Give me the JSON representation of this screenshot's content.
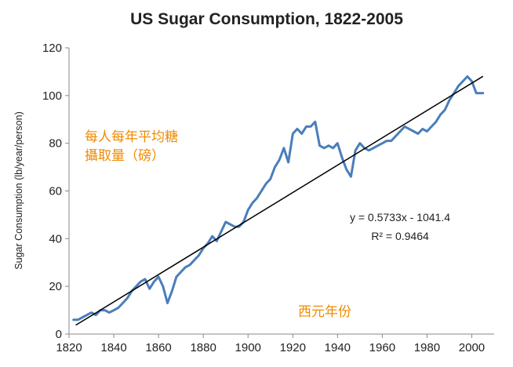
{
  "chart_data": {
    "type": "line",
    "title": "US Sugar Consumption, 1822-2005",
    "ylabel": "Sugar Consumption (lb/year/person)",
    "xlabel": "",
    "xlim": [
      1820,
      2010
    ],
    "ylim": [
      0,
      120
    ],
    "x_ticks": [
      1820,
      1840,
      1860,
      1880,
      1900,
      1920,
      1940,
      1960,
      1980,
      2000
    ],
    "y_ticks": [
      0,
      20,
      40,
      60,
      80,
      100,
      120
    ],
    "grid": false,
    "legend": "none",
    "series": [
      {
        "color": "#4a7ebb",
        "points": [
          [
            1822,
            6
          ],
          [
            1824,
            6
          ],
          [
            1826,
            7
          ],
          [
            1828,
            8
          ],
          [
            1830,
            9
          ],
          [
            1832,
            8
          ],
          [
            1834,
            10
          ],
          [
            1836,
            10
          ],
          [
            1838,
            9
          ],
          [
            1840,
            10
          ],
          [
            1842,
            11
          ],
          [
            1844,
            13
          ],
          [
            1846,
            15
          ],
          [
            1848,
            18
          ],
          [
            1850,
            20
          ],
          [
            1852,
            22
          ],
          [
            1854,
            23
          ],
          [
            1856,
            19
          ],
          [
            1858,
            22
          ],
          [
            1860,
            24
          ],
          [
            1862,
            20
          ],
          [
            1864,
            13
          ],
          [
            1866,
            18
          ],
          [
            1868,
            24
          ],
          [
            1870,
            26
          ],
          [
            1872,
            28
          ],
          [
            1874,
            29
          ],
          [
            1876,
            31
          ],
          [
            1878,
            33
          ],
          [
            1880,
            36
          ],
          [
            1882,
            38
          ],
          [
            1884,
            41
          ],
          [
            1886,
            39
          ],
          [
            1888,
            43
          ],
          [
            1890,
            47
          ],
          [
            1892,
            46
          ],
          [
            1894,
            45
          ],
          [
            1896,
            45
          ],
          [
            1898,
            47
          ],
          [
            1900,
            52
          ],
          [
            1902,
            55
          ],
          [
            1904,
            57
          ],
          [
            1906,
            60
          ],
          [
            1908,
            63
          ],
          [
            1910,
            65
          ],
          [
            1912,
            70
          ],
          [
            1914,
            73
          ],
          [
            1916,
            78
          ],
          [
            1918,
            72
          ],
          [
            1920,
            84
          ],
          [
            1922,
            86
          ],
          [
            1924,
            84
          ],
          [
            1926,
            87
          ],
          [
            1928,
            87
          ],
          [
            1930,
            89
          ],
          [
            1932,
            79
          ],
          [
            1934,
            78
          ],
          [
            1936,
            79
          ],
          [
            1938,
            78
          ],
          [
            1940,
            80
          ],
          [
            1942,
            74
          ],
          [
            1944,
            69
          ],
          [
            1946,
            66
          ],
          [
            1948,
            77
          ],
          [
            1950,
            80
          ],
          [
            1952,
            78
          ],
          [
            1954,
            77
          ],
          [
            1956,
            78
          ],
          [
            1958,
            79
          ],
          [
            1960,
            80
          ],
          [
            1962,
            81
          ],
          [
            1964,
            81
          ],
          [
            1966,
            83
          ],
          [
            1968,
            85
          ],
          [
            1970,
            87
          ],
          [
            1972,
            86
          ],
          [
            1974,
            85
          ],
          [
            1976,
            84
          ],
          [
            1978,
            86
          ],
          [
            1980,
            85
          ],
          [
            1982,
            87
          ],
          [
            1984,
            89
          ],
          [
            1986,
            92
          ],
          [
            1988,
            94
          ],
          [
            1990,
            98
          ],
          [
            1992,
            101
          ],
          [
            1994,
            104
          ],
          [
            1996,
            106
          ],
          [
            1998,
            108
          ],
          [
            2000,
            106
          ],
          [
            2002,
            101
          ],
          [
            2005,
            101
          ]
        ]
      }
    ],
    "trendline": {
      "slope": 0.5733,
      "intercept": -1041.4,
      "x_from": 1823,
      "x_to": 2005,
      "color": "#000000"
    },
    "equation_text": "y = 0.5733x - 1041.4",
    "r2_text": "R² = 0.9464"
  },
  "annotations": {
    "ylabel_zh_line1": "每人每年平均糖",
    "ylabel_zh_line2": "攝取量（磅）",
    "xlabel_zh": "西元年份"
  },
  "colors": {
    "annotation": "#f08a00",
    "series": "#4a7ebb"
  }
}
